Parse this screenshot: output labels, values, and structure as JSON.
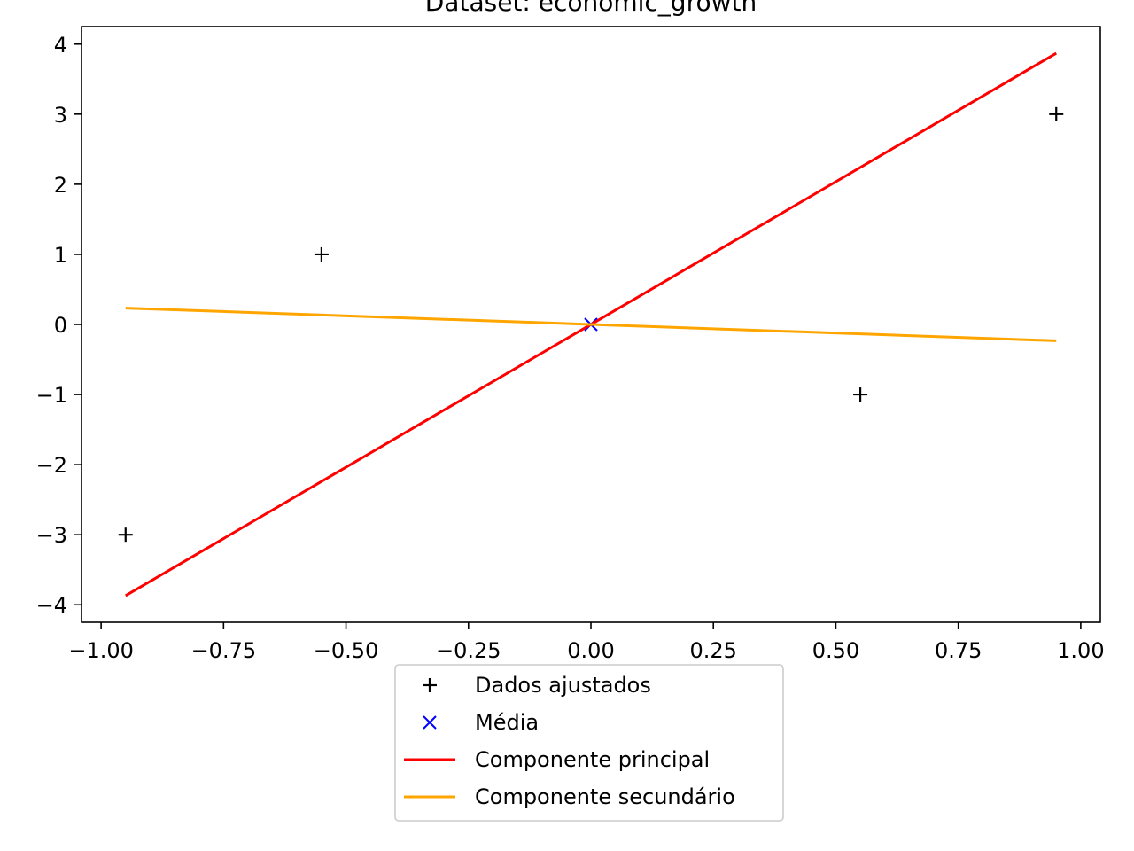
{
  "chart_data": {
    "type": "scatter",
    "title": "Dataset: economic_growth",
    "xlabel": "",
    "ylabel": "",
    "xlim": [
      -1.04,
      1.04
    ],
    "ylim": [
      -4.25,
      4.25
    ],
    "x_ticks": [
      -1.0,
      -0.75,
      -0.5,
      -0.25,
      0.0,
      0.25,
      0.5,
      0.75,
      1.0
    ],
    "x_tick_labels": [
      "−1.00",
      "−0.75",
      "−0.50",
      "−0.25",
      "0.00",
      "0.25",
      "0.50",
      "0.75",
      "1.00"
    ],
    "y_ticks": [
      -4,
      -3,
      -2,
      -1,
      0,
      1,
      2,
      3,
      4
    ],
    "y_tick_labels": [
      "−4",
      "−3",
      "−2",
      "−1",
      "0",
      "1",
      "2",
      "3",
      "4"
    ],
    "grid": false,
    "legend_position": "bottom-center",
    "series": [
      {
        "name": "Dados ajustados",
        "kind": "scatter",
        "marker": "plus",
        "color": "#000000",
        "points": [
          [
            -0.95,
            -3
          ],
          [
            -0.55,
            1
          ],
          [
            0.55,
            -1
          ],
          [
            0.95,
            3
          ]
        ]
      },
      {
        "name": "Média",
        "kind": "scatter",
        "marker": "x",
        "color": "#0000ff",
        "points": [
          [
            0.0,
            0.0
          ]
        ]
      },
      {
        "name": "Componente principal",
        "kind": "line",
        "color": "#ff0000",
        "points": [
          [
            -0.95,
            -3.87
          ],
          [
            0.95,
            3.87
          ]
        ]
      },
      {
        "name": "Componente secundário",
        "kind": "line",
        "color": "#ffa500",
        "points": [
          [
            -0.95,
            0.233
          ],
          [
            0.95,
            -0.233
          ]
        ]
      }
    ]
  }
}
